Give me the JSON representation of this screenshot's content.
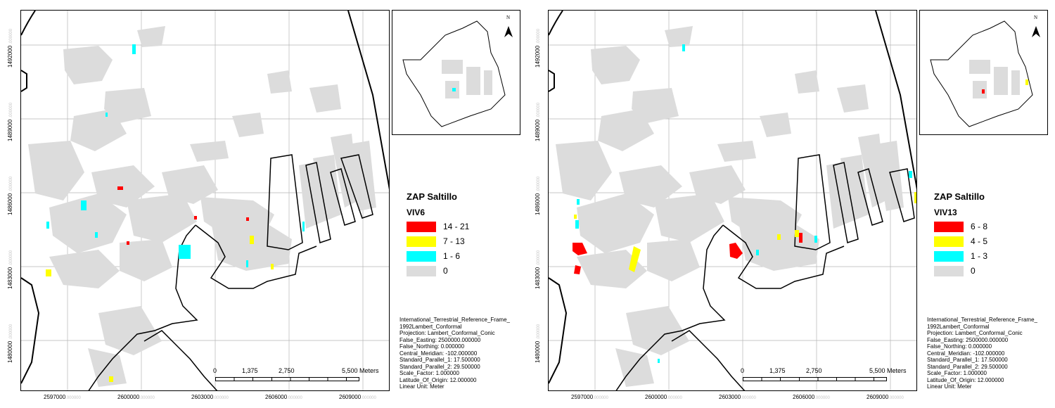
{
  "maps": [
    {
      "legend": {
        "title": "ZAP Saltillo",
        "field": "VIV6",
        "classes": [
          {
            "label": "14 - 21",
            "color": "#ff0000"
          },
          {
            "label": "7 - 13",
            "color": "#ffff00"
          },
          {
            "label": "1 - 6",
            "color": "#00ffff"
          },
          {
            "label": "0",
            "color": "#dcdcdc"
          }
        ]
      }
    },
    {
      "legend": {
        "title": "ZAP Saltillo",
        "field": "VIV13",
        "classes": [
          {
            "label": "6 - 8",
            "color": "#ff0000"
          },
          {
            "label": "4 - 5",
            "color": "#ffff00"
          },
          {
            "label": "1 - 3",
            "color": "#00ffff"
          },
          {
            "label": "0",
            "color": "#dcdcdc"
          }
        ]
      }
    }
  ],
  "projection_lines": [
    "International_Terrestrial_Reference_Frame_",
    "1992Lambert_Conformal",
    "Projection: Lambert_Conformal_Conic",
    "False_Easting: 2500000.000000",
    "False_Northing: 0.000000",
    "Central_Meridian: -102.000000",
    "Standard_Parallel_1: 17.500000",
    "Standard_Parallel_2: 29.500000",
    "Scale_Factor: 1.000000",
    "Latitude_Of_Origin: 12.000000",
    "Linear Unit: Meter"
  ],
  "scale_bar": {
    "labels": [
      "0",
      "1,375",
      "2,750",
      "5,500 Meters"
    ]
  },
  "axis": {
    "x_ticks": [
      "2597000",
      "2600000",
      "2603000",
      "2606000",
      "2609000"
    ],
    "y_ticks": [
      "1492000",
      "1489000",
      "1486000",
      "1483000",
      "1480000"
    ],
    "tick_suffix": ".000000"
  },
  "north_arrow": {
    "label": "N"
  }
}
